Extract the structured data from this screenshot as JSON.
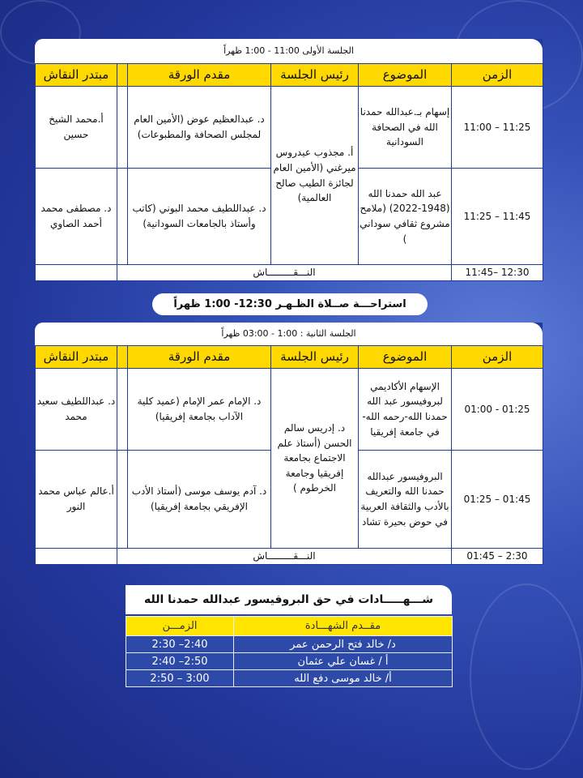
{
  "session1": {
    "title": "الجلسة الأولى 11:00 - 1:00 ظهراً",
    "headers": {
      "time": "الزمن",
      "topic": "الموضوع",
      "chair": "رئيس الجلسة",
      "presenter": "مقدم الورقة",
      "discussant": "مبتدر النقاش"
    },
    "chair": "أ. مجذوب عيدروس ميرغني (الأمين العام لجائزة الطيب صالح العالمية)",
    "rows": [
      {
        "time": "11:00 – 11:25",
        "topic": "إسهام بـ.عبدالله حمدنا الله في الصحافة السودانية",
        "presenter": "د. عبدالعظيم عوض (الأمين العام لمجلس الصحافة والمطبوعات)",
        "discussant": "أ.محمد الشيخ حسين"
      },
      {
        "time": "11:25 – 11:45",
        "topic": "عبد الله حمدنا الله (1948-2022) (ملامح مشروع ثقافي سوداني )",
        "presenter": "د. عبداللطيف محمد البوني (كاتب وأستاذ بالجامعات السودانية)",
        "discussant": "د. مصطفى محمد أحمد الصاوي"
      }
    ],
    "discussion": {
      "time": "11:45– 12:30",
      "label": "النـــقـــــــــاش"
    }
  },
  "break": "استراحـــة صــلاة الظـهـر 12:30- 1:00 ظهراً",
  "session2": {
    "title": "الجلسة الثانية : 1:00 - 03:00 ظهراً",
    "headers": {
      "time": "الزمن",
      "topic": "الموضوع",
      "chair": "رئيس الجلسة",
      "presenter": "مقدم الورقة",
      "discussant": "مبتدر النقاش"
    },
    "chair": "د. إدريس سالم الحسن (أستاذ علم الاجتماع بجامعة إفريقيا وجامعة الخرطوم )",
    "rows": [
      {
        "time": "01:00 - 01:25",
        "topic": "الإسهام الأكاديمي لبروفيسور عبد الله حمدنا الله-رحمه الله- في جامعة إفريقيا",
        "presenter": "د. الإمام عمر الإمام (عميد كلية الآداب بجامعة إفريقيا)",
        "discussant": "د. عبداللطيف سعيد محمد"
      },
      {
        "time": "01:25 – 01:45",
        "topic": "البروفيسور عبدالله حمدنا الله والتعريف بالأدب والثقافة العربية في حوض بحيرة تشاد",
        "presenter": "د. آدم يوسف موسى (أستاذ الأدب الإفريقي بجامعة إفريقيا)",
        "discussant": "أ.عالم عباس محمد النور"
      }
    ],
    "discussion": {
      "time": "01:45 – 2:30",
      "label": "النـــقـــــــــاش"
    }
  },
  "testimonies": {
    "title": "شـــهـــــادات في حق البروفيسور عبدالله حمدنا الله",
    "headers": {
      "presenter": "مقــدم الشهـــادة",
      "time": "الزمـــن"
    },
    "rows": [
      {
        "presenter": "د/ خالد فتح الرحمن عمر",
        "time": "2:30 –2:40"
      },
      {
        "presenter": "أ / غسان علي عثمان",
        "time": "2:40 –2:50"
      },
      {
        "presenter": "أ/ خالد موسى دفع الله",
        "time": "2:50 – 3:00"
      }
    ]
  },
  "colors": {
    "header": "#ffd800",
    "background": "#2a44a8",
    "border": "#1e3a9a"
  }
}
